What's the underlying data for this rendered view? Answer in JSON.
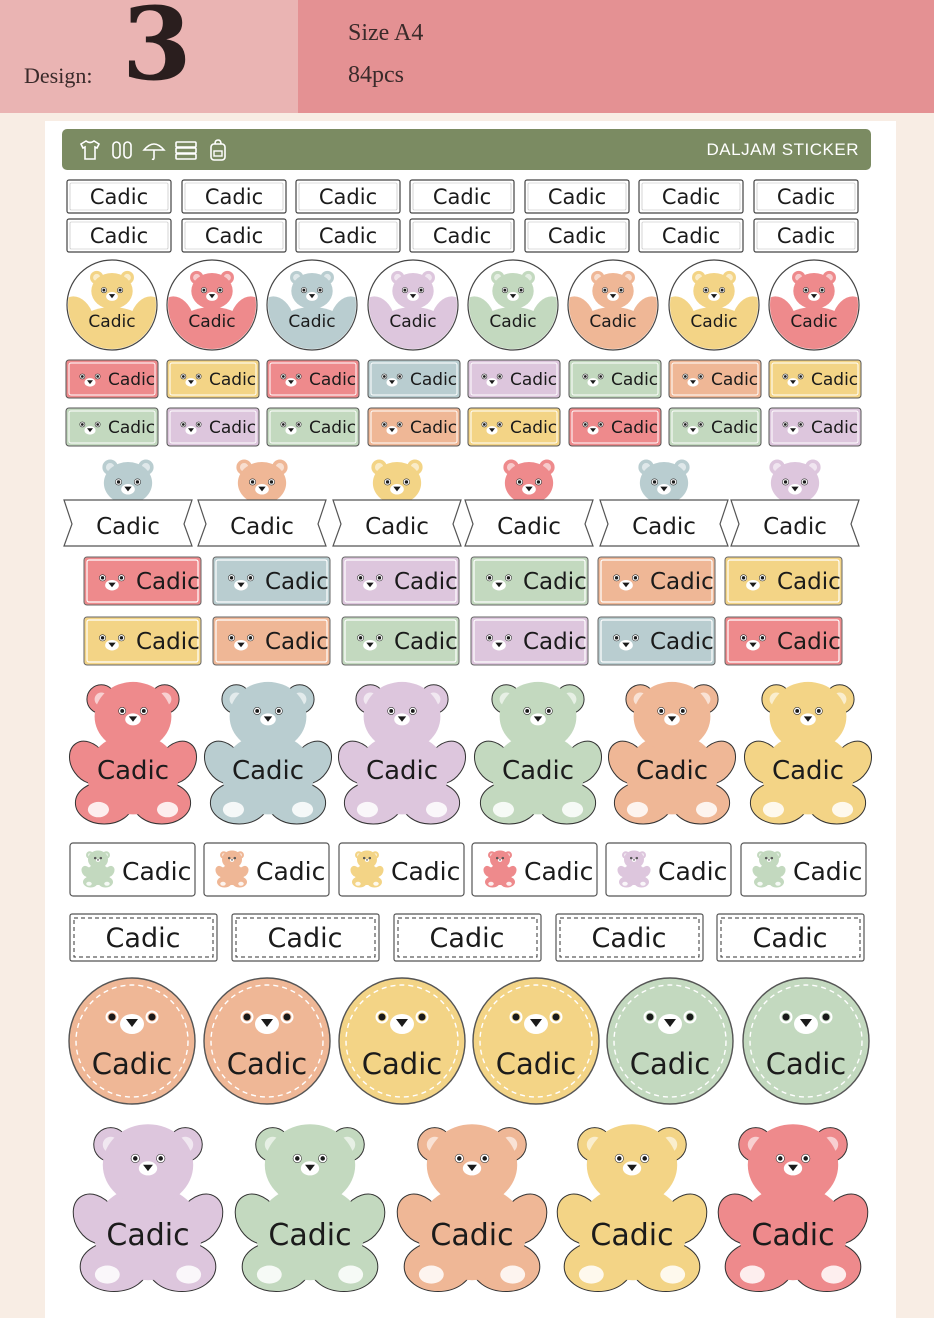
{
  "header": {
    "design_label": "Design:",
    "design_number": "3",
    "size": "Size A4",
    "count": "84pcs"
  },
  "banner": {
    "title": "DALJAM STICKER",
    "icons": [
      "tshirt-icon",
      "shoes-icon",
      "umbrella-icon",
      "books-icon",
      "backpack-icon"
    ]
  },
  "sticker_text": "Cadic",
  "colors": {
    "background": "#f8ede4",
    "header_left": "#eab4b3",
    "header_right": "#e49193",
    "banner": "#7b8b62",
    "yellow": "#f3d486",
    "pink": "#ee8a8c",
    "blue": "#b9cdd0",
    "lilac": "#ddc6dd",
    "green": "#c3d9bf",
    "peach": "#efb796"
  },
  "rows": {
    "row_rect_a": "7 labels",
    "row_rect_b": "7 labels",
    "row_round_bear": [
      "yellow",
      "pink",
      "blue",
      "lilac",
      "green",
      "peach",
      "yellow",
      "pink"
    ],
    "row_small_tag_a": [
      "pink",
      "yellow",
      "pink",
      "blue",
      "lilac",
      "green",
      "peach",
      "yellow"
    ],
    "row_small_tag_b": [
      "green",
      "lilac",
      "green",
      "peach",
      "yellow",
      "pink",
      "green",
      "lilac"
    ],
    "row_ribbon_bear": [
      "blue",
      "peach",
      "yellow",
      "pink",
      "blue",
      "lilac"
    ],
    "row_tag_a": [
      "pink",
      "blue",
      "lilac",
      "green",
      "peach",
      "yellow"
    ],
    "row_tag_b": [
      "yellow",
      "peach",
      "green",
      "lilac",
      "blue",
      "pink"
    ],
    "row_bear_shape": [
      "pink",
      "blue",
      "lilac",
      "green",
      "peach",
      "yellow"
    ],
    "row_mini_bear": [
      "green",
      "peach",
      "yellow",
      "pink",
      "lilac",
      "green"
    ],
    "row_dashed": "5 labels",
    "row_circle_badge": [
      "peach",
      "peach",
      "yellow",
      "yellow",
      "green",
      "green"
    ],
    "row_big_bear": [
      "lilac",
      "green",
      "peach",
      "yellow",
      "pink"
    ]
  }
}
